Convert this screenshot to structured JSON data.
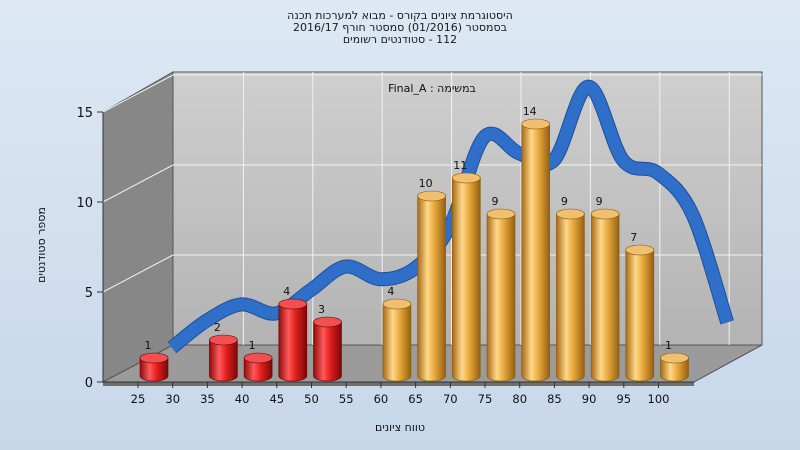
{
  "header": {
    "line1": "היסטוגרמת ציונים בקורס - מבוא למערכות תכנה",
    "line2": "בסמסטר (01/2016) סמסטר חורף 2016/17",
    "line3": "112 - סטודנטים רשומים"
  },
  "colors": {
    "fail_bar": "#e21f1f",
    "pass_bar": "#e8a93e",
    "curve": "#2f6fc9",
    "back_wall": "#c0c0c0",
    "side_wall": "#858585",
    "floor": "#999999"
  },
  "chart_data": {
    "type": "bar",
    "title": "היסטוגרמת ציונים בקורס - מבוא למערכות תכנה",
    "annotation": "Final_A : במשימה",
    "xlabel": "טווח ציונים",
    "ylabel": "מספר סטודנטים",
    "ylim": [
      0,
      15
    ],
    "yticks": [
      0,
      5,
      10,
      15
    ],
    "xticks": [
      "25",
      "30",
      "35",
      "40",
      "45",
      "50",
      "55",
      "60",
      "65",
      "70",
      "75",
      "80",
      "85",
      "90",
      "95",
      "100"
    ],
    "bars": [
      {
        "x": 25,
        "value": 1,
        "label": "1",
        "group": "fail"
      },
      {
        "x": 35,
        "value": 2,
        "label": "2",
        "group": "fail"
      },
      {
        "x": 40,
        "value": 1,
        "label": "1",
        "group": "fail"
      },
      {
        "x": 45,
        "value": 4,
        "label": "4",
        "group": "fail"
      },
      {
        "x": 50,
        "value": 3,
        "label": "3",
        "group": "fail"
      },
      {
        "x": 60,
        "value": 4,
        "label": "4",
        "group": "pass"
      },
      {
        "x": 65,
        "value": 10,
        "label": "10",
        "group": "pass"
      },
      {
        "x": 70,
        "value": 11,
        "label": "11",
        "group": "pass"
      },
      {
        "x": 75,
        "value": 9,
        "label": "9",
        "group": "pass"
      },
      {
        "x": 80,
        "value": 14,
        "label": "14",
        "group": "pass"
      },
      {
        "x": 85,
        "value": 9,
        "label": "9",
        "group": "pass"
      },
      {
        "x": 90,
        "value": 9,
        "label": "9",
        "group": "pass"
      },
      {
        "x": 95,
        "value": 7,
        "label": "7",
        "group": "pass"
      },
      {
        "x": 100,
        "value": 1,
        "label": "1",
        "group": "pass"
      }
    ],
    "curve": [
      {
        "x": 25,
        "y": 0.8
      },
      {
        "x": 30,
        "y": 2.3
      },
      {
        "x": 35,
        "y": 3.2
      },
      {
        "x": 40,
        "y": 2.7
      },
      {
        "x": 45,
        "y": 4.0
      },
      {
        "x": 50,
        "y": 5.3
      },
      {
        "x": 55,
        "y": 4.6
      },
      {
        "x": 60,
        "y": 5.2
      },
      {
        "x": 65,
        "y": 7.5
      },
      {
        "x": 70,
        "y": 12.5
      },
      {
        "x": 75,
        "y": 11.6
      },
      {
        "x": 80,
        "y": 11.2
      },
      {
        "x": 85,
        "y": 15.3
      },
      {
        "x": 90,
        "y": 11.2
      },
      {
        "x": 95,
        "y": 10.5
      },
      {
        "x": 100,
        "y": 8.2
      },
      {
        "x": 105,
        "y": 2.2
      }
    ],
    "grid": true,
    "legend": "none"
  }
}
